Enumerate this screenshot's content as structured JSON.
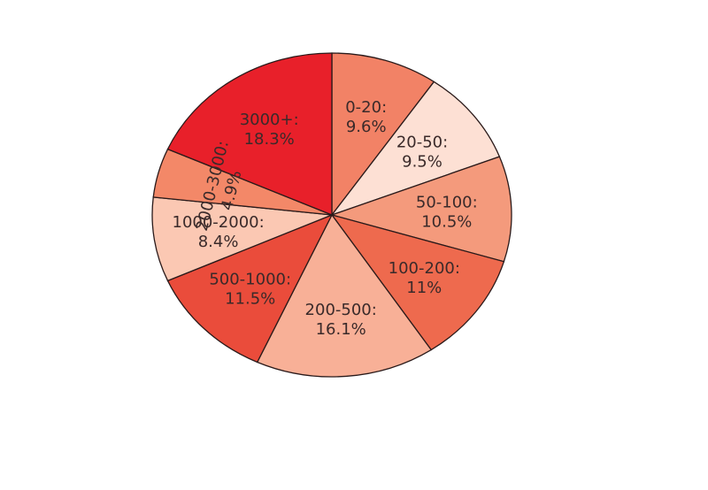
{
  "chart_data": {
    "type": "pie",
    "title": "",
    "categories": [
      "0-20",
      "20-50",
      "50-100",
      "100-200",
      "200-500",
      "500-1000",
      "1000-2000",
      "2000-3000",
      "3000+"
    ],
    "values": [
      9.6,
      9.5,
      10.5,
      11,
      16.1,
      11.5,
      8.4,
      4.9,
      18.3
    ],
    "labels": [
      [
        "0-20:",
        "9.6%"
      ],
      [
        "20-50:",
        "9.5%"
      ],
      [
        "50-100:",
        "10.5%"
      ],
      [
        "100-200:",
        "11%"
      ],
      [
        "200-500:",
        "16.1%"
      ],
      [
        "500-1000:",
        "11.5%"
      ],
      [
        "1000-2000:",
        "8.4%"
      ],
      [
        "2000-3000:",
        "4.9%"
      ],
      [
        "3000+:",
        "18.3%"
      ]
    ],
    "colors": [
      "#f28266",
      "#fde0d4",
      "#f49a7c",
      "#ee6a4e",
      "#f8b097",
      "#ea4c3b",
      "#fbc8b3",
      "#f38868",
      "#e8202a"
    ]
  }
}
